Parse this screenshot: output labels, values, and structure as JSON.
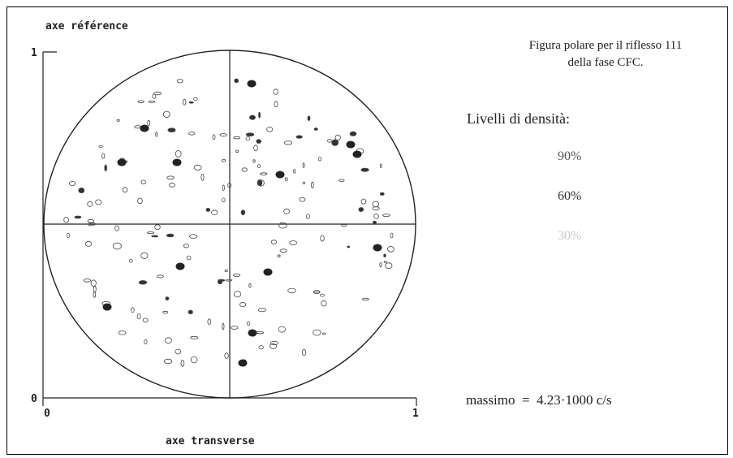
{
  "chart_data": {
    "type": "contour",
    "ylabel": "axe référence",
    "xlabel": "axe transverse",
    "y_ticks": [
      "1",
      "0"
    ],
    "x_ticks": [
      "0",
      "1"
    ],
    "xlim": [
      0,
      1
    ],
    "ylim": [
      0,
      1
    ],
    "projection": "polar",
    "title_lines": [
      "Figura polare per il riflesso 111",
      "della fase CFC."
    ],
    "levels_title": "Livelli di densità:",
    "levels": [
      {
        "label": "90%",
        "value": 90,
        "color": "#555555"
      },
      {
        "label": "60%",
        "value": 60,
        "color": "#333333"
      },
      {
        "label": "30%",
        "value": 30,
        "color": "#c8c8c8"
      }
    ],
    "maximum_text": "massimo  =  4.23·1000 c/s"
  }
}
